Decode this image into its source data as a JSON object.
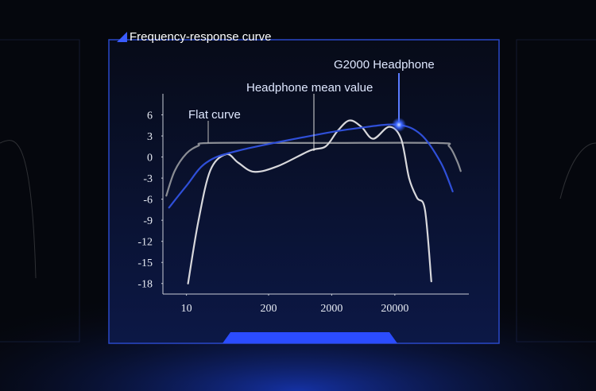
{
  "chart_data": {
    "type": "line",
    "title": "Frequency-response curve",
    "xscale": "log",
    "xlim": [
      4,
      250000
    ],
    "xticks": [
      10,
      200,
      2000,
      20000
    ],
    "ylim": [
      -19.5,
      9
    ],
    "yticks": [
      6,
      3,
      0,
      -3,
      -6,
      -9,
      -12,
      -15,
      -18
    ],
    "annotations": [
      "Flat curve",
      "Headphone mean value",
      "G2000 Headphone"
    ],
    "series": [
      {
        "name": "Flat curve",
        "color": "#8a8d94",
        "x": [
          4.8,
          6.5,
          10,
          15.4,
          23.9,
          1200,
          93000,
          145000,
          192000,
          221000
        ],
        "values": [
          -5.5,
          -2,
          0.5,
          1.6,
          2,
          2,
          2,
          1.5,
          -0.5,
          -2
        ]
      },
      {
        "name": "Headphone mean value",
        "color": "#d8d8dc",
        "x": [
          10.6,
          15.4,
          23.9,
          42.6,
          66,
          118,
          280,
          895,
          1600,
          2470,
          3820,
          5900,
          9100,
          16300,
          25100,
          33600,
          44900,
          60000,
          75700
        ],
        "values": [
          -18,
          -9.2,
          -1.9,
          0.4,
          -0.8,
          -2.1,
          -1.3,
          0.9,
          1.5,
          3.7,
          5.2,
          4.3,
          2.6,
          4.3,
          2.6,
          -3,
          -5.8,
          -7.5,
          -17.7
        ]
      },
      {
        "name": "G2000 Headphone",
        "color": "#2f4fd8",
        "x": [
          5.3,
          10,
          20.6,
          66,
          1200,
          5100,
          21800,
          51900,
          107000,
          165000
        ],
        "values": [
          -7.2,
          -4.1,
          -0.8,
          0.9,
          3.2,
          4.1,
          4.6,
          3.2,
          -0.8,
          -4.9
        ]
      }
    ]
  }
}
